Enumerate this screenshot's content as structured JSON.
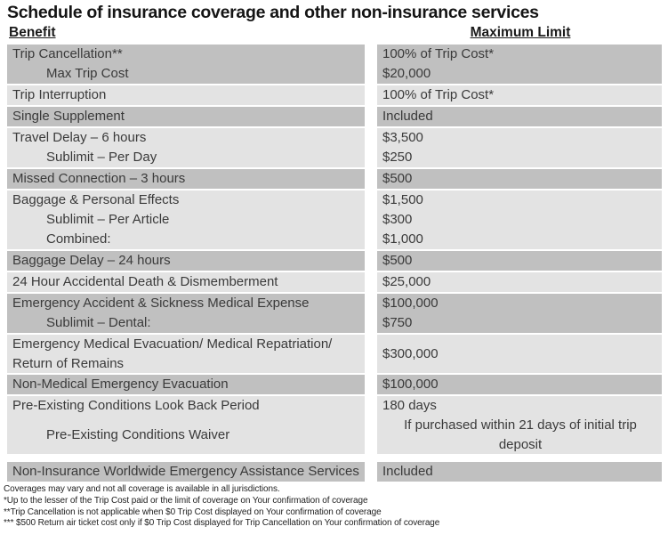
{
  "page": {
    "title": "Schedule of insurance coverage and other non-insurance services"
  },
  "table": {
    "headers": {
      "benefit": "Benefit",
      "limit": "Maximum Limit"
    },
    "groups": [
      {
        "shade": "dark",
        "rows": [
          {
            "benefit": "Trip Cancellation**",
            "indent": false,
            "limit": "100% of Trip Cost*"
          },
          {
            "benefit": "Max Trip Cost",
            "indent": true,
            "limit": "$20,000"
          }
        ]
      },
      {
        "shade": "light",
        "rows": [
          {
            "benefit": "Trip Interruption",
            "indent": false,
            "limit": "100% of Trip Cost*"
          }
        ]
      },
      {
        "shade": "dark",
        "rows": [
          {
            "benefit": "Single Supplement",
            "indent": false,
            "limit": "Included"
          }
        ]
      },
      {
        "shade": "light",
        "rows": [
          {
            "benefit": "Travel Delay – 6 hours",
            "indent": false,
            "limit": "$3,500"
          },
          {
            "benefit": "Sublimit – Per Day",
            "indent": true,
            "limit": "$250"
          }
        ]
      },
      {
        "shade": "dark",
        "rows": [
          {
            "benefit": "Missed Connection – 3 hours",
            "indent": false,
            "limit": "$500"
          }
        ]
      },
      {
        "shade": "light",
        "rows": [
          {
            "benefit": "Baggage & Personal Effects",
            "indent": false,
            "limit": "$1,500"
          },
          {
            "benefit": "Sublimit – Per Article",
            "indent": true,
            "limit": "$300"
          },
          {
            "benefit": "Combined:",
            "indent": true,
            "limit": "$1,000"
          }
        ]
      },
      {
        "shade": "dark",
        "rows": [
          {
            "benefit": "Baggage Delay – 24 hours",
            "indent": false,
            "limit": "$500"
          }
        ]
      },
      {
        "shade": "light",
        "rows": [
          {
            "benefit": "24 Hour Accidental Death & Dismemberment",
            "indent": false,
            "limit": "$25,000"
          }
        ]
      },
      {
        "shade": "dark",
        "rows": [
          {
            "benefit": "Emergency Accident & Sickness Medical Expense",
            "indent": false,
            "limit": "$100,000"
          },
          {
            "benefit": "Sublimit – Dental:",
            "indent": true,
            "limit": "$750"
          }
        ]
      },
      {
        "shade": "light",
        "rows": [
          {
            "benefit": "Emergency Medical Evacuation/ Medical Repatriation/ Return of Remains",
            "indent": false,
            "limit": "$300,000"
          }
        ]
      },
      {
        "shade": "dark",
        "rows": [
          {
            "benefit": "Non-Medical Emergency Evacuation",
            "indent": false,
            "limit": "$100,000"
          }
        ]
      },
      {
        "shade": "light",
        "rows": [
          {
            "benefit": "Pre-Existing Conditions Look Back Period",
            "indent": false,
            "limit": "180 days"
          },
          {
            "benefit": "Pre-Existing Conditions Waiver",
            "indent": true,
            "limit": "If purchased within 21 days of initial trip deposit",
            "limit_center": true
          }
        ]
      },
      {
        "shade": "dark",
        "gap_before": true,
        "rows": [
          {
            "benefit": "Non-Insurance Worldwide Emergency Assistance Services",
            "indent": false,
            "limit": "Included"
          }
        ]
      }
    ]
  },
  "footnotes": [
    "Coverages may vary and not all coverage is available in all jurisdictions.",
    "*Up to the lesser of the Trip Cost paid or the limit of coverage on Your confirmation of coverage",
    "**Trip Cancellation is not applicable when $0 Trip Cost displayed on Your confirmation of coverage",
    "*** $500 Return air ticket cost only if $0 Trip Cost displayed for Trip Cancellation on Your confirmation of coverage"
  ],
  "colors": {
    "row_dark": "#c0c0c0",
    "row_light": "#e3e3e3",
    "text": "#3a3a3a",
    "title_text": "#151515"
  }
}
